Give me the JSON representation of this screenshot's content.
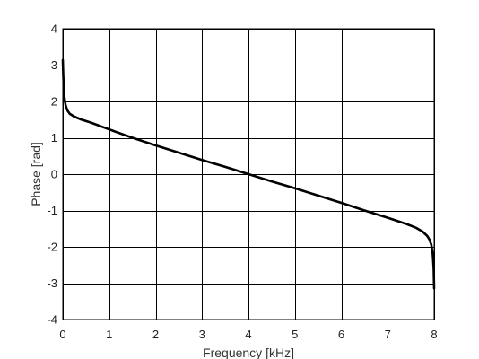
{
  "chart_data": {
    "type": "line",
    "xlabel": "Frequency [kHz]",
    "ylabel": "Phase [rad]",
    "xlim": [
      0,
      8
    ],
    "ylim": [
      -4,
      4
    ],
    "x_ticks": [
      0,
      1,
      2,
      3,
      4,
      5,
      6,
      7,
      8
    ],
    "y_ticks": [
      4,
      3,
      2,
      1,
      0,
      -1,
      -2,
      -3,
      -4
    ],
    "x_tick_labels": [
      "0",
      "1",
      "2",
      "3",
      "4",
      "5",
      "6",
      "7",
      "8"
    ],
    "y_tick_labels": [
      "4",
      "3",
      "2",
      "1",
      "0",
      "-1",
      "-2",
      "-3",
      "-4"
    ],
    "grid": true,
    "series": [
      {
        "color": "#000000",
        "x": [
          0.0,
          0.01,
          0.03,
          0.06,
          0.1,
          0.15,
          0.25,
          0.4,
          0.6,
          1.0,
          1.5,
          2.0,
          2.5,
          3.0,
          3.5,
          4.0,
          4.5,
          5.0,
          5.5,
          6.0,
          6.5,
          7.0,
          7.4,
          7.6,
          7.75,
          7.85,
          7.9,
          7.94,
          7.97,
          7.99,
          8.0
        ],
        "y": [
          3.14,
          2.7,
          2.15,
          1.9,
          1.75,
          1.66,
          1.58,
          1.5,
          1.42,
          1.23,
          1.0,
          0.79,
          0.59,
          0.39,
          0.2,
          0.0,
          -0.2,
          -0.39,
          -0.59,
          -0.79,
          -1.0,
          -1.2,
          -1.37,
          -1.47,
          -1.58,
          -1.7,
          -1.8,
          -1.95,
          -2.2,
          -2.6,
          -3.14
        ]
      }
    ]
  }
}
